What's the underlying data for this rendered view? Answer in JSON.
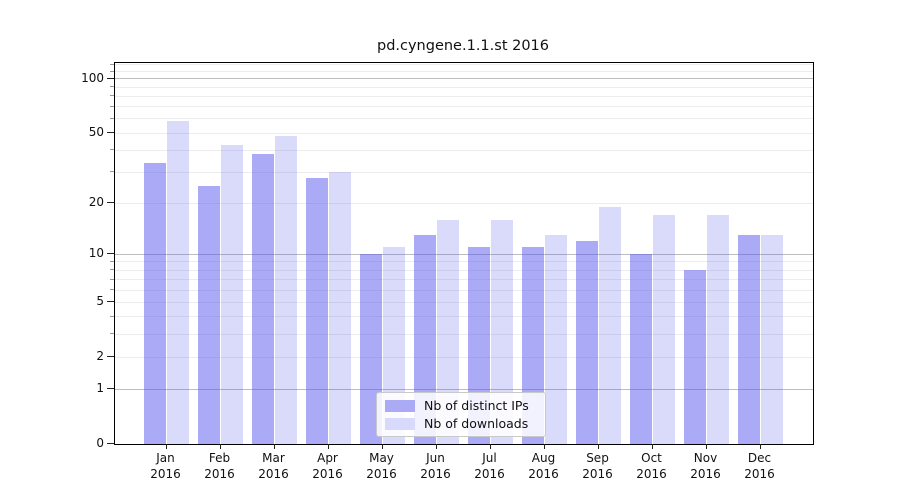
{
  "chart_data": {
    "type": "bar",
    "title": "pd.cyngene.1.1.st 2016",
    "categories": [
      "Jan",
      "Feb",
      "Mar",
      "Apr",
      "May",
      "Jun",
      "Jul",
      "Aug",
      "Sep",
      "Oct",
      "Nov",
      "Dec"
    ],
    "year_label": "2016",
    "series": [
      {
        "name": "Nb of distinct IPs",
        "color": "#aaaaf5",
        "fill": "rgba(85,85,237,0.5)",
        "values": [
          34,
          25,
          38,
          28,
          10,
          13,
          11,
          11,
          12,
          10,
          8,
          13
        ]
      },
      {
        "name": "Nb of downloads",
        "color": "#d9d9fb",
        "fill": "rgba(85,85,237,0.22)",
        "values": [
          58,
          43,
          48,
          30,
          11,
          16,
          16,
          13,
          19,
          17,
          17,
          13
        ]
      }
    ],
    "y_axis": {
      "scale": "log1p",
      "ticks": [
        0,
        1,
        2,
        5,
        10,
        20,
        50,
        100
      ],
      "major_gridlines": [
        1,
        10,
        100
      ],
      "minor_gridlines": [
        3,
        4,
        6,
        7,
        8,
        9,
        30,
        40,
        60,
        70,
        80,
        90,
        110,
        120
      ],
      "ylim": [
        0,
        122.6
      ]
    },
    "grid": true,
    "legend_position": "lower center"
  }
}
